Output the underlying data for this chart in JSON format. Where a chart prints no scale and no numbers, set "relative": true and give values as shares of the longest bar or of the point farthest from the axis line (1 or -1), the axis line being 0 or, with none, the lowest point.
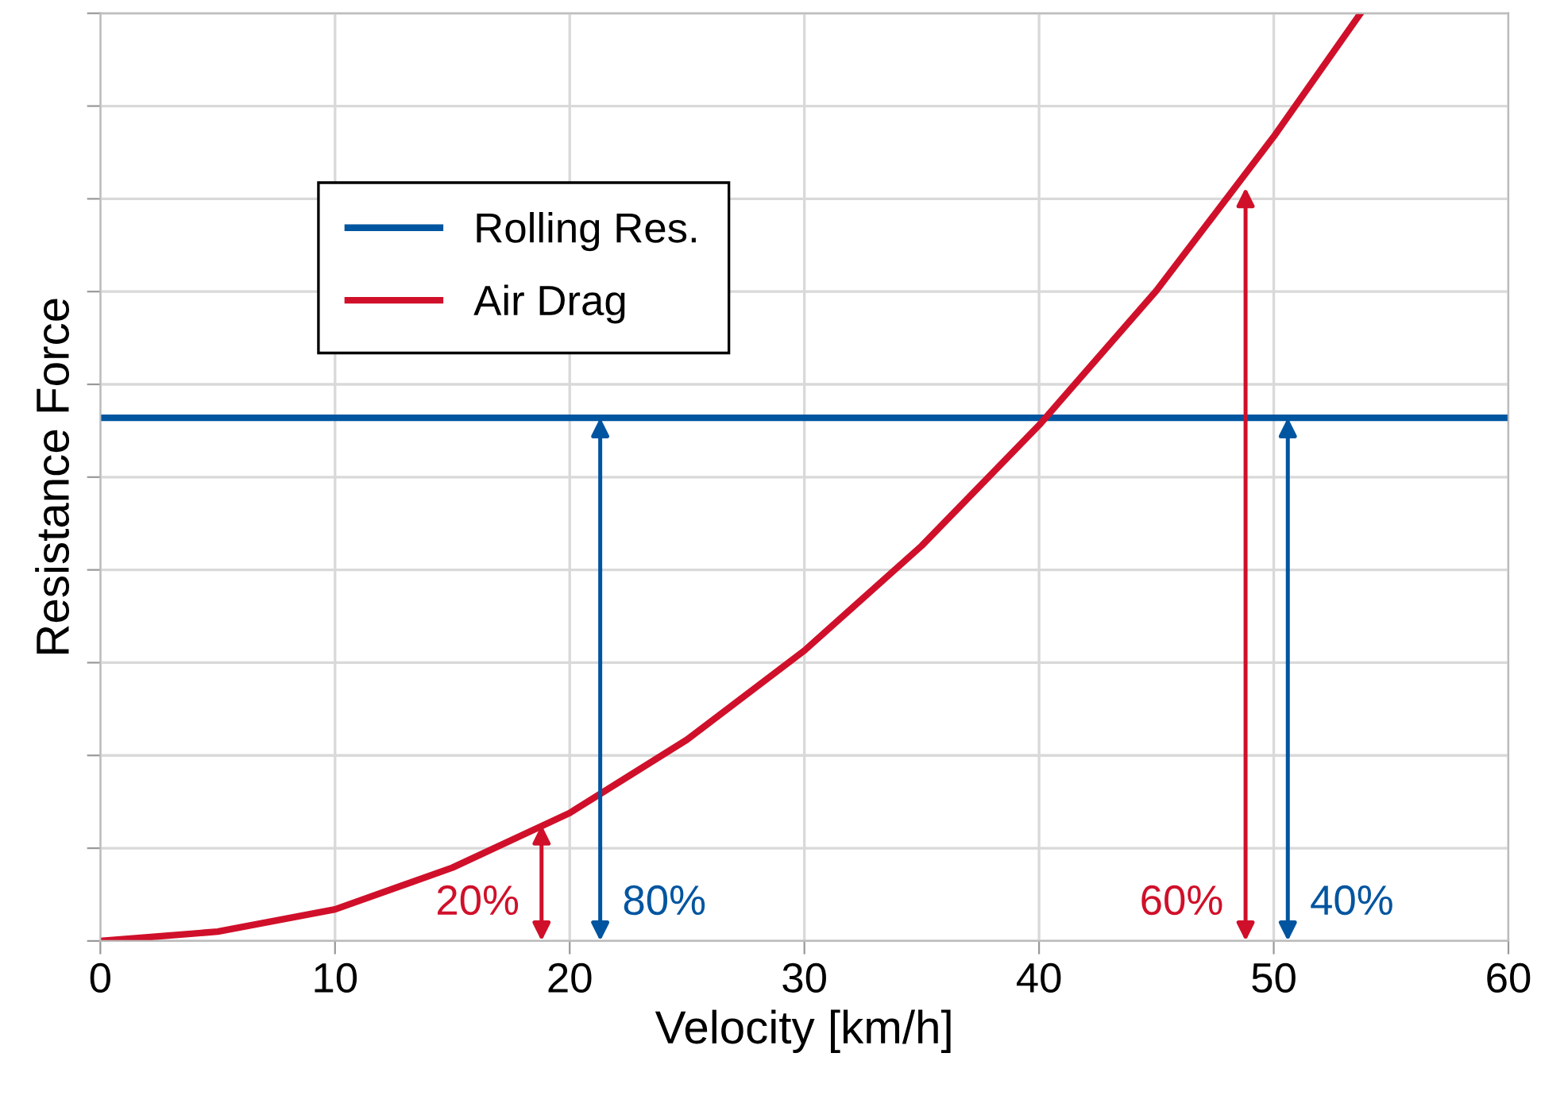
{
  "chart_data": {
    "type": "line",
    "xlabel": "Velocity [km/h]",
    "ylabel": "Resistance Force",
    "relative": true,
    "xlim": [
      0,
      60
    ],
    "xticks": [
      0,
      10,
      20,
      30,
      40,
      50,
      60
    ],
    "grid": true,
    "legend": "top left",
    "marker": "none",
    "line_style": "solid",
    "series": [
      {
        "name": "Rolling Res.",
        "color": "#0055a0",
        "x": [
          0,
          60
        ],
        "values": [
          0.564,
          0.564
        ]
      },
      {
        "name": "Air Drag",
        "color": "#d0102a",
        "x": [
          0,
          5,
          10,
          15,
          20,
          25,
          30,
          35,
          40,
          45,
          50,
          53.7
        ],
        "values": [
          0,
          0.01,
          0.034,
          0.079,
          0.138,
          0.217,
          0.313,
          0.426,
          0.556,
          0.701,
          0.867,
          1.0
        ]
      }
    ],
    "annotations": [
      {
        "text": "20%",
        "x": 18.8,
        "y": 0.125
      },
      {
        "text": "80%",
        "x": 21.3,
        "y": 0.564
      },
      {
        "text": "60%",
        "x": 48.8,
        "y": 0.812
      },
      {
        "text": "40%",
        "x": 50.6,
        "y": 0.564
      }
    ]
  }
}
